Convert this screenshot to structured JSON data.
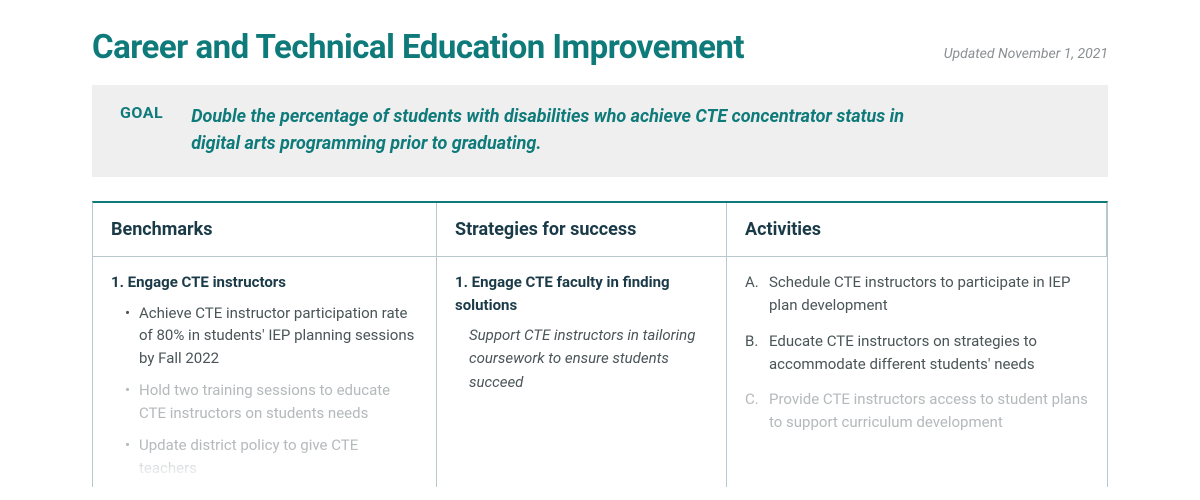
{
  "header": {
    "title": "Career and Technical Education Improvement",
    "updated": "Updated November 1, 2021"
  },
  "goal": {
    "label": "GOAL",
    "text": "Double the percentage of students with disabilities who achieve CTE concentrator status in digital arts programming prior to graduating."
  },
  "columns": {
    "benchmarks": "Benchmarks",
    "strategies": "Strategies for success",
    "activities": "Activities"
  },
  "benchmarks": {
    "section_title": "1. Engage CTE instructors",
    "items": [
      {
        "text": "Achieve CTE instructor participation rate of 80% in students' IEP planning sessions by Fall 2022",
        "faded": false
      },
      {
        "text": "Hold two training sessions to educate CTE instructors on students needs",
        "faded": true
      },
      {
        "text": "Update district policy to give CTE teachers",
        "faded": true
      }
    ]
  },
  "strategies": {
    "section_title": "1. Engage CTE faculty in finding solutions",
    "subtitle": "Support CTE instructors in tailoring coursework to ensure students succeed"
  },
  "activities": {
    "items": [
      {
        "text": "Schedule CTE instructors to participate in IEP plan development",
        "faded": false
      },
      {
        "text": "Educate CTE instructors on strategies to accommodate different students' needs",
        "faded": false
      },
      {
        "text": "Provide CTE instructors access to student plans to support curriculum development",
        "faded": true
      }
    ]
  },
  "colors": {
    "accent": "#0f7a7a",
    "text": "#1a3a47",
    "muted": "#4a5558",
    "faded": "#b4b9bb",
    "goal_bg": "#efefef",
    "border": "#b8c8cc"
  }
}
